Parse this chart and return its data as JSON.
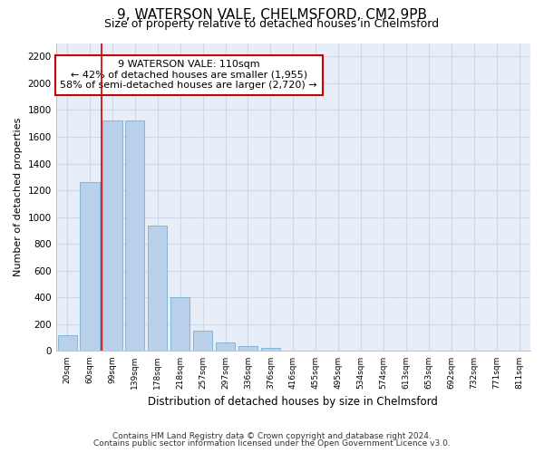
{
  "title_line1": "9, WATERSON VALE, CHELMSFORD, CM2 9PB",
  "title_line2": "Size of property relative to detached houses in Chelmsford",
  "xlabel": "Distribution of detached houses by size in Chelmsford",
  "ylabel": "Number of detached properties",
  "categories": [
    "20sqm",
    "60sqm",
    "99sqm",
    "139sqm",
    "178sqm",
    "218sqm",
    "257sqm",
    "297sqm",
    "336sqm",
    "376sqm",
    "416sqm",
    "455sqm",
    "495sqm",
    "534sqm",
    "574sqm",
    "613sqm",
    "653sqm",
    "692sqm",
    "732sqm",
    "771sqm",
    "811sqm"
  ],
  "values": [
    115,
    1260,
    1720,
    1720,
    940,
    405,
    150,
    65,
    35,
    22,
    0,
    0,
    0,
    0,
    0,
    0,
    0,
    0,
    0,
    0,
    0
  ],
  "bar_color": "#b8d0ea",
  "bar_edge_color": "#7aadd4",
  "vline_x": 1.5,
  "vline_color": "#cc0000",
  "annotation_text": "9 WATERSON VALE: 110sqm\n← 42% of detached houses are smaller (1,955)\n58% of semi-detached houses are larger (2,720) →",
  "annotation_box_color": "#ffffff",
  "annotation_border_color": "#cc0000",
  "ylim": [
    0,
    2300
  ],
  "yticks": [
    0,
    200,
    400,
    600,
    800,
    1000,
    1200,
    1400,
    1600,
    1800,
    2000,
    2200
  ],
  "bg_color": "#e8eef8",
  "plot_bg_color": "#ffffff",
  "grid_color": "#c8d4e8",
  "footer_line1": "Contains HM Land Registry data © Crown copyright and database right 2024.",
  "footer_line2": "Contains public sector information licensed under the Open Government Licence v3.0."
}
